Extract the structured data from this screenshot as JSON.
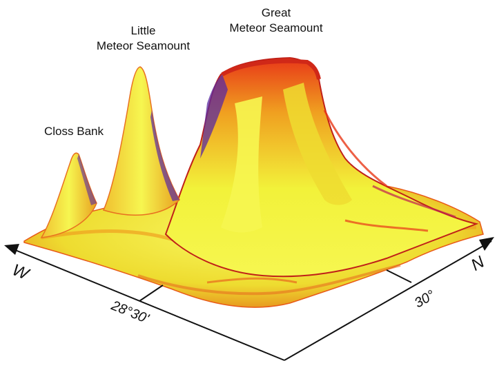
{
  "features": {
    "great": {
      "line1": "Great",
      "line2": "Meteor Seamount"
    },
    "little": {
      "line1": "Little",
      "line2": "Meteor Seamount"
    },
    "closs": {
      "label": "Closs Bank"
    }
  },
  "axes": {
    "west_dir": "W",
    "north_dir": "N",
    "longitude_tick": "28°30'",
    "latitude_tick": "30°"
  },
  "colors": {
    "base": "#f2f23a",
    "mid": "#f0a020",
    "ridge": "#e83818",
    "shadow": "#5a2aa0",
    "axis": "#111111"
  }
}
